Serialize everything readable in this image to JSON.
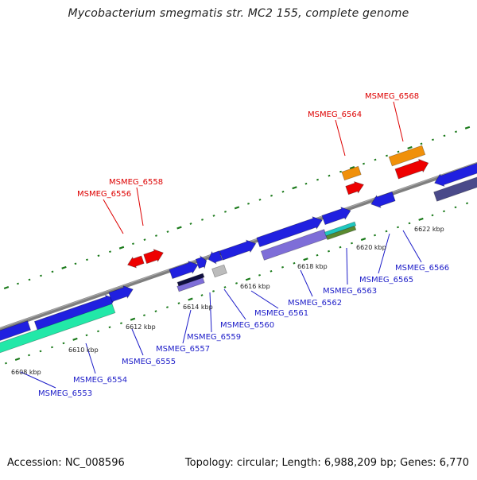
{
  "title": "Mycobacterium smegmatis str. MC2 155, complete genome",
  "footer": {
    "accession": "Accession: NC_008596",
    "summary": "Topology: circular; Length: 6,988,209 bp; Genes: 6,770"
  },
  "colors": {
    "backbone": "#808080",
    "tick": "#1a7a1a",
    "gene_label": "#1c1cc8",
    "rna_label": "#dd0000",
    "blue": "#2020e0",
    "red": "#ee0000",
    "orange": "#f0900a",
    "teal": "#22e8a8",
    "lavender": "#7e6ed8",
    "navy": "#4a4a8a",
    "gray": "#bcbcbc"
  },
  "scale_labels": [
    "6608 kbp",
    "6610 kbp",
    "6612 kbp",
    "6614 kbp",
    "6616 kbp",
    "6618 kbp",
    "6620 kbp",
    "6622 kbp"
  ],
  "gene_labels_bottom": [
    "MSMEG_6553",
    "MSMEG_6554",
    "MSMEG_6555",
    "MSMEG_6557",
    "MSMEG_6559",
    "MSMEG_6560",
    "MSMEG_6561",
    "MSMEG_6562",
    "MSMEG_6563",
    "MSMEG_6565",
    "MSMEG_6566"
  ],
  "gene_labels_top": [
    "MSMEG_6556",
    "MSMEG_6558",
    "MSMEG_6564",
    "MSMEG_6568"
  ]
}
